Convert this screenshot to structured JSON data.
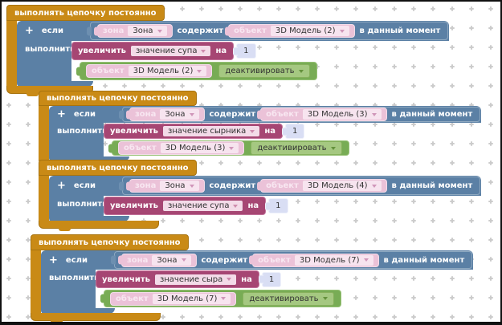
{
  "labels": {
    "wrapper": "выполнять цепочку постоянно",
    "plus": "+",
    "if": "если",
    "do": "выполнить",
    "zone_label": "зона",
    "contains": "содержит",
    "object_label": "объект",
    "moment": "в данный момент",
    "increase": "увеличить",
    "by": "на",
    "deactivate": "деактивировать"
  },
  "groups": [
    {
      "zone": "Зона",
      "object": "3D Модель (2)",
      "variable": "значение супа",
      "amount": "1",
      "has_deactivate_row": true
    },
    {
      "zone": "Зона",
      "object": "3D Модель (3)",
      "variable": "значение сырника",
      "amount": "1",
      "has_deactivate_row": true
    },
    {
      "zone": "Зона",
      "object": "3D Модель (4)",
      "variable": "значение супа",
      "amount": "1",
      "has_deactivate_row": false
    },
    {
      "zone": "Зона",
      "object": "3D Модель (7)",
      "variable": "значение сыра",
      "amount": "1",
      "has_deactivate_row": true
    }
  ],
  "colors": {
    "wrapper_orange": "#c98a16",
    "if_blue": "#5b80a5",
    "increase_maroon": "#a64673",
    "object_green": "#78ac55",
    "pink_chip": "#ebc2d8",
    "pink_dropdown": "#f7e4ef",
    "green_dropdown": "#a5c881",
    "number_chip": "#d9def4",
    "grid_dot": "#cccccc"
  }
}
